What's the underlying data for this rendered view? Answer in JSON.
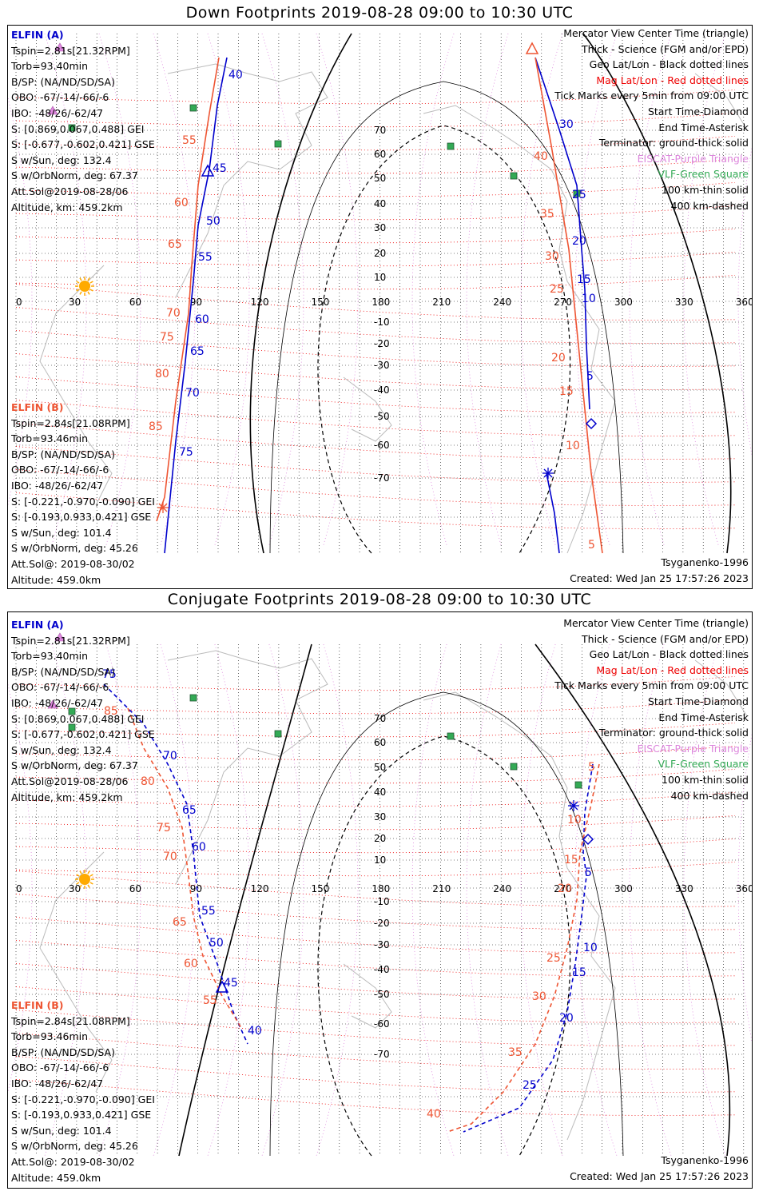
{
  "titles": {
    "down": "Down Footprints 2019-08-28 09:00 to 10:30 UTC",
    "conjugate": "Conjugate Footprints 2019-08-28 09:00 to 10:30 UTC"
  },
  "elfin_a": {
    "label": "ELFIN (A)",
    "lines": [
      "Tspin=2.81s[21.32RPM]",
      "Torb=93.40min",
      "B/SP: (NA/ND/SD/SA)",
      "OBO: -67/-14/-66/-6",
      "IBO: -48/26/-62/47",
      "S: [0.869,0.067,0.488] GEI",
      "S: [-0.677,-0.602,0.421] GSE",
      "S w/Sun, deg: 132.4",
      "S w/OrbNorm, deg: 67.37",
      "Att.Sol@2019-08-28/06",
      "Altitude, km: 459.2km"
    ]
  },
  "elfin_b": {
    "label": "ELFIN (B)",
    "lines": [
      "Tspin=2.84s[21.08RPM]",
      "Torb=93.46min",
      "B/SP: (NA/ND/SD/SA)",
      "OBO: -67/-14/-66/-6",
      "IBO: -48/26/-62/47",
      "S: [-0.221,-0.970,-0.090] GEI",
      "S: [-0.193,0.933,0.421] GSE",
      "S w/Sun, deg: 101.4",
      "S w/OrbNorm, deg: 45.26",
      "Att.Sol@: 2019-08-30/02",
      "Altitude: 459.0km"
    ]
  },
  "legend": [
    {
      "text": "Mercator View Center Time (triangle)",
      "color": "#000000"
    },
    {
      "text": "Thick - Science (FGM and/or EPD)",
      "color": "#000000"
    },
    {
      "text": "Geo Lat/Lon - Black dotted lines",
      "color": "#000000"
    },
    {
      "text": "Mag Lat/Lon - Red dotted lines",
      "color": "#ee0000"
    },
    {
      "text": "Tick Marks every 5min from 09:00 UTC",
      "color": "#000000"
    },
    {
      "text": "Start Time-Diamond",
      "color": "#000000"
    },
    {
      "text": "End Time-Asterisk",
      "color": "#000000"
    },
    {
      "text": "Terminator: ground-thick solid",
      "color": "#000000"
    },
    {
      "text": "EISCAT-Purple Triangle",
      "color": "#dd88dd"
    },
    {
      "text": "VLF-Green Square",
      "color": "#33aa55"
    },
    {
      "text": "100 km-thin solid",
      "color": "#000000"
    },
    {
      "text": "400 km-dashed",
      "color": "#000000"
    }
  ],
  "model": "Tsyganenko-1996",
  "created": "Created: Wed Jan 25 17:57:26 2023",
  "axes": {
    "lon_ticks": [
      "0",
      "30",
      "60",
      "90",
      "120",
      "150",
      "180",
      "210",
      "240",
      "270",
      "300",
      "330",
      "360"
    ],
    "lat_ticks": [
      "70",
      "60",
      "50",
      "40",
      "30",
      "20",
      "10",
      "-10",
      "-20",
      "-30",
      "-40",
      "-50",
      "-60",
      "-70"
    ]
  },
  "colors": {
    "elfin_a": "#0000cc",
    "elfin_b": "#ee5533",
    "mag_grid": "#ee0000",
    "eiscat": "#dd88dd",
    "vlf": "#33aa55",
    "sun": "#ffaa00"
  },
  "tracks": {
    "down": {
      "a_ticks": [
        "40",
        "45",
        "50",
        "55",
        "60",
        "65",
        "70",
        "75",
        "30",
        "25",
        "20",
        "15",
        "10",
        "5"
      ],
      "b_ticks": [
        "55",
        "60",
        "65",
        "70",
        "75",
        "80",
        "85",
        "40",
        "35",
        "30",
        "25",
        "20",
        "15",
        "10",
        "5"
      ]
    },
    "conjugate": {
      "a_ticks": [
        "75",
        "70",
        "65",
        "60",
        "55",
        "50",
        "45",
        "40",
        "5",
        "10",
        "15",
        "20",
        "25"
      ],
      "b_ticks": [
        "85",
        "80",
        "75",
        "70",
        "65",
        "60",
        "55",
        "5",
        "10",
        "15",
        "20",
        "25",
        "30",
        "35",
        "40"
      ]
    }
  }
}
